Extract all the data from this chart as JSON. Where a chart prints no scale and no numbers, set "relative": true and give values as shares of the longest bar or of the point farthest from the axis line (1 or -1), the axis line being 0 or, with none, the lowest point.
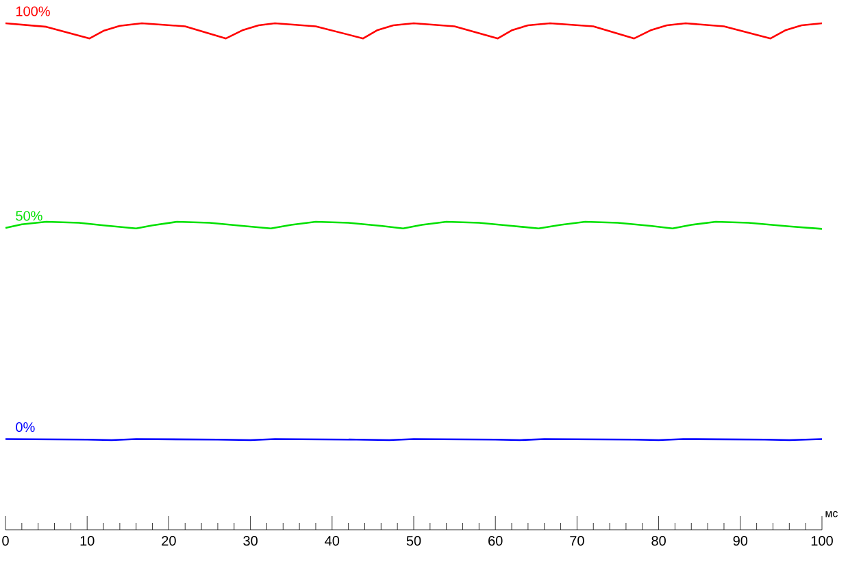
{
  "chart_data": {
    "type": "line",
    "relative": true,
    "xlabel": "мс",
    "xlim": [
      0,
      100
    ],
    "xticks": [
      0,
      {
        "value": 2,
        "label": null
      },
      {
        "value": 4,
        "label": null
      },
      {
        "value": 6,
        "label": null
      },
      {
        "value": 8,
        "label": null
      },
      10,
      {
        "value": 12,
        "label": null
      },
      {
        "value": 14,
        "label": null
      },
      {
        "value": 16,
        "label": null
      },
      {
        "value": 18,
        "label": null
      },
      20,
      {
        "value": 22,
        "label": null
      },
      {
        "value": 24,
        "label": null
      },
      {
        "value": 26,
        "label": null
      },
      {
        "value": 28,
        "label": null
      },
      30,
      {
        "value": 32,
        "label": null
      },
      {
        "value": 34,
        "label": null
      },
      {
        "value": 36,
        "label": null
      },
      {
        "value": 38,
        "label": null
      },
      40,
      {
        "value": 42,
        "label": null
      },
      {
        "value": 44,
        "label": null
      },
      {
        "value": 46,
        "label": null
      },
      {
        "value": 48,
        "label": null
      },
      50,
      {
        "value": 52,
        "label": null
      },
      {
        "value": 54,
        "label": null
      },
      {
        "value": 56,
        "label": null
      },
      {
        "value": 58,
        "label": null
      },
      60,
      {
        "value": 62,
        "label": null
      },
      {
        "value": 64,
        "label": null
      },
      {
        "value": 66,
        "label": null
      },
      {
        "value": 68,
        "label": null
      },
      70,
      {
        "value": 72,
        "label": null
      },
      {
        "value": 74,
        "label": null
      },
      {
        "value": 76,
        "label": null
      },
      {
        "value": 78,
        "label": null
      },
      80,
      {
        "value": 82,
        "label": null
      },
      {
        "value": 84,
        "label": null
      },
      {
        "value": 86,
        "label": null
      },
      {
        "value": 88,
        "label": null
      },
      90,
      {
        "value": 92,
        "label": null
      },
      {
        "value": 94,
        "label": null
      },
      {
        "value": 96,
        "label": null
      },
      {
        "value": 98,
        "label": null
      },
      100
    ],
    "series": [
      {
        "name": "100%",
        "color": "#ff0000",
        "x": [
          0,
          5,
          10.3,
          12,
          14,
          16.7,
          22,
          27,
          29,
          31,
          33,
          38,
          43.8,
          45.5,
          47.5,
          50,
          55,
          60.3,
          62,
          64,
          66.7,
          72,
          77,
          79,
          81,
          83.3,
          88,
          93.7,
          95.5,
          97.5,
          100
        ],
        "values": [
          1.0,
          0.993,
          0.97,
          0.985,
          0.995,
          1.0,
          0.994,
          0.97,
          0.986,
          0.996,
          1.0,
          0.994,
          0.97,
          0.986,
          0.996,
          1.0,
          0.994,
          0.97,
          0.986,
          0.996,
          1.0,
          0.994,
          0.97,
          0.986,
          0.996,
          1.0,
          0.994,
          0.97,
          0.986,
          0.996,
          1.0
        ]
      },
      {
        "name": "50%",
        "color": "#00e000",
        "x": [
          0,
          2,
          5,
          9,
          12,
          16,
          18,
          21,
          25,
          29,
          32.5,
          35,
          38,
          42,
          46,
          48.7,
          51,
          54,
          58,
          62,
          65.3,
          68,
          71,
          75,
          79,
          81.7,
          84,
          87,
          91,
          96,
          100
        ],
        "values": [
          0.596,
          0.603,
          0.608,
          0.606,
          0.601,
          0.595,
          0.601,
          0.608,
          0.606,
          0.6,
          0.595,
          0.602,
          0.608,
          0.606,
          0.6,
          0.595,
          0.602,
          0.608,
          0.606,
          0.6,
          0.595,
          0.602,
          0.608,
          0.606,
          0.6,
          0.595,
          0.602,
          0.608,
          0.606,
          0.599,
          0.594
        ]
      },
      {
        "name": "0%",
        "color": "#0000ff",
        "x": [
          0,
          10,
          13,
          16,
          26,
          30,
          33,
          43,
          47,
          50,
          60,
          63,
          66,
          77,
          80,
          83,
          93,
          96,
          100
        ],
        "values": [
          0.179,
          0.178,
          0.177,
          0.179,
          0.178,
          0.177,
          0.179,
          0.178,
          0.177,
          0.179,
          0.178,
          0.177,
          0.179,
          0.178,
          0.177,
          0.179,
          0.178,
          0.177,
          0.179
        ]
      }
    ]
  }
}
